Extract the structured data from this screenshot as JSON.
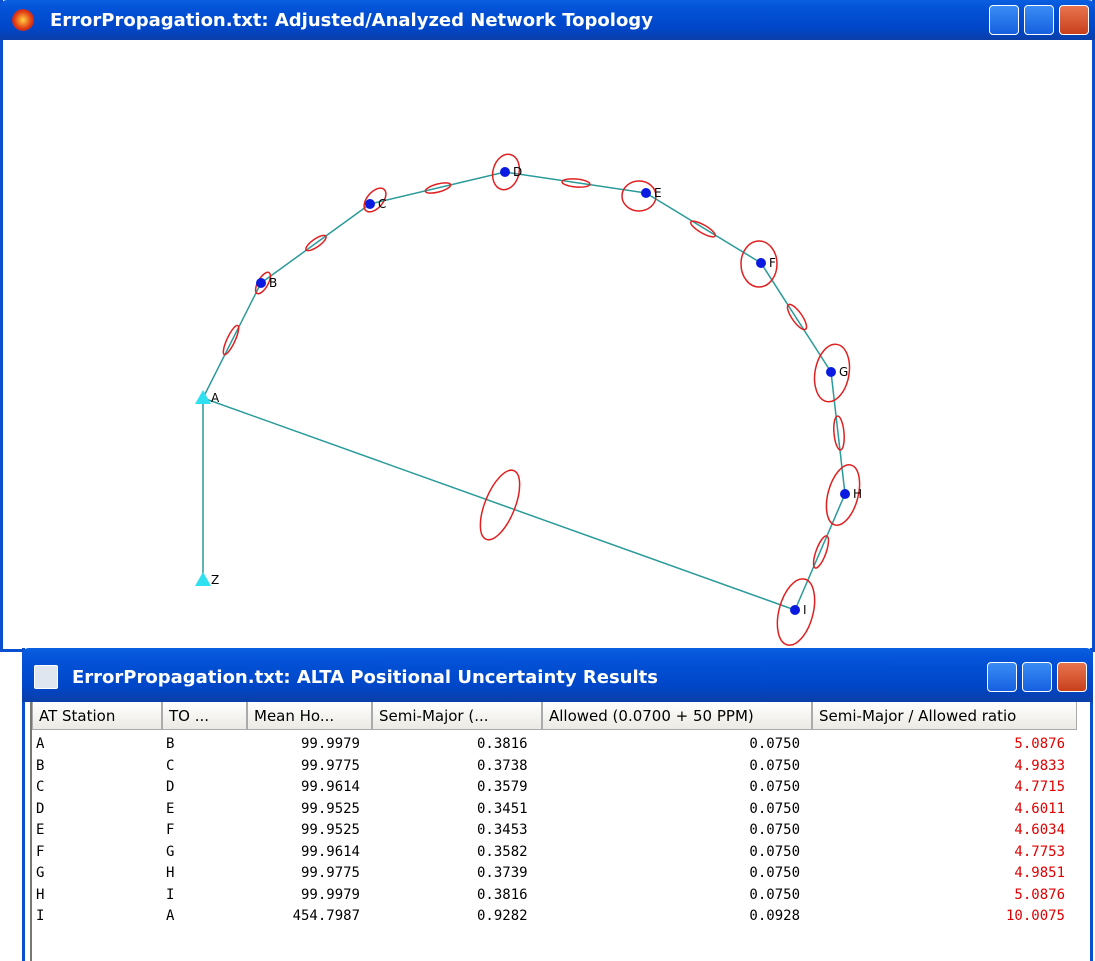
{
  "windows": [
    {
      "title": "ErrorPropagation.txt: Adjusted/Analyzed Network Topology",
      "stations": [
        "A",
        "B",
        "C",
        "D",
        "E",
        "F",
        "G",
        "H",
        "I",
        "Z"
      ]
    },
    {
      "title": "ErrorPropagation.txt: ALTA Positional Uncertainty Results",
      "table": {
        "headers": [
          "AT Station",
          "TO ...",
          "Mean Ho...",
          "Semi-Major (...",
          "Allowed (0.0700 + 50 PPM)",
          "Semi-Major / Allowed ratio"
        ],
        "rows": [
          [
            "A",
            "B",
            "99.9979",
            "0.3816",
            "0.0750",
            "5.0876"
          ],
          [
            "B",
            "C",
            "99.9775",
            "0.3738",
            "0.0750",
            "4.9833"
          ],
          [
            "C",
            "D",
            "99.9614",
            "0.3579",
            "0.0750",
            "4.7715"
          ],
          [
            "D",
            "E",
            "99.9525",
            "0.3451",
            "0.0750",
            "4.6011"
          ],
          [
            "E",
            "F",
            "99.9525",
            "0.3453",
            "0.0750",
            "4.6034"
          ],
          [
            "F",
            "G",
            "99.9614",
            "0.3582",
            "0.0750",
            "4.7753"
          ],
          [
            "G",
            "H",
            "99.9775",
            "0.3739",
            "0.0750",
            "4.9851"
          ],
          [
            "H",
            "I",
            "99.9979",
            "0.3816",
            "0.0750",
            "5.0876"
          ],
          [
            "I",
            "A",
            "454.7987",
            "0.9282",
            "0.0928",
            "10.0075"
          ]
        ]
      }
    }
  ]
}
